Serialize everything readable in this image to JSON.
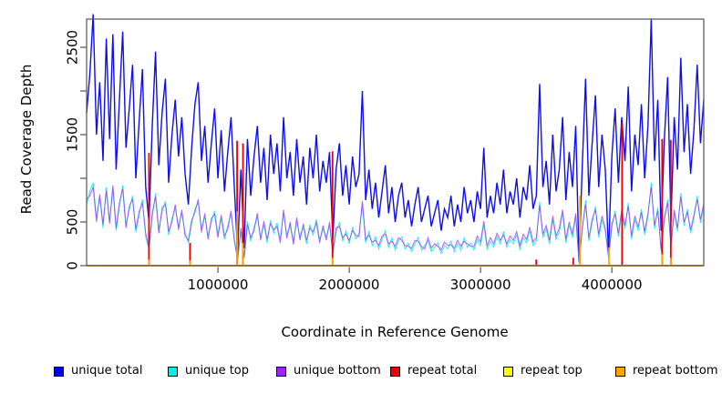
{
  "figure": {
    "background": "#ffffff",
    "axis_color": "#333333",
    "box_color": "#555555",
    "text_color": "#000000"
  },
  "chart_data": {
    "type": "line",
    "title": "",
    "xlabel": "Coordinate in Reference Genome",
    "ylabel": "Read Coverage Depth",
    "xlim": [
      0,
      4700000
    ],
    "ylim": [
      0,
      2823
    ],
    "grid": false,
    "legend_position": "bottom",
    "x_ticks": [
      1000000,
      2000000,
      3000000,
      4000000
    ],
    "x_tick_labels": [
      "1000000",
      "2000000",
      "3000000",
      "4000000"
    ],
    "y_ticks": [
      0,
      500,
      1000,
      1500,
      2000,
      2500
    ],
    "y_tick_labels": [
      "0",
      "500",
      "",
      "1500",
      "",
      "2500"
    ],
    "x_start": 0,
    "x_step": 25000,
    "series": [
      {
        "name": "unique total",
        "color": "#0000EE",
        "values": [
          1750,
          2200,
          2880,
          1500,
          2100,
          1200,
          2600,
          1450,
          2650,
          1100,
          1900,
          2680,
          1350,
          1800,
          2300,
          1000,
          1650,
          2250,
          900,
          500,
          1600,
          2450,
          1150,
          1750,
          2140,
          950,
          1500,
          1900,
          1250,
          1700,
          1050,
          700,
          1350,
          1850,
          2100,
          1200,
          1600,
          950,
          1400,
          1800,
          1000,
          1550,
          850,
          1300,
          1700,
          900,
          150,
          1100,
          200,
          1450,
          800,
          1250,
          1600,
          950,
          1350,
          750,
          1500,
          1050,
          1400,
          850,
          1700,
          1000,
          1300,
          800,
          1450,
          950,
          1250,
          700,
          1350,
          1000,
          1500,
          850,
          1200,
          950,
          1300,
          300,
          1100,
          1400,
          800,
          1150,
          700,
          1250,
          900,
          1050,
          2000,
          750,
          1100,
          650,
          950,
          550,
          850,
          1150,
          600,
          900,
          500,
          800,
          950,
          550,
          750,
          450,
          700,
          900,
          500,
          650,
          800,
          450,
          600,
          750,
          400,
          650,
          550,
          800,
          450,
          700,
          500,
          900,
          600,
          750,
          500,
          850,
          650,
          1350,
          550,
          800,
          600,
          950,
          700,
          1100,
          600,
          850,
          700,
          1000,
          550,
          900,
          750,
          1150,
          650,
          800,
          2080,
          900,
          1200,
          700,
          1500,
          850,
          1100,
          1700,
          750,
          1300,
          900,
          1600,
          60,
          1150,
          2140,
          800,
          1400,
          1950,
          900,
          1500,
          1100,
          150,
          1250,
          1800,
          950,
          1700,
          1200,
          2050,
          850,
          1500,
          1150,
          1850,
          1000,
          1600,
          2820,
          1200,
          1900,
          400,
          1450,
          2160,
          500,
          1700,
          1100,
          2380,
          1300,
          1850,
          1050,
          1550,
          2300,
          1400,
          1900
        ]
      },
      {
        "name": "unique top",
        "color": "#00EEEE",
        "values": [
          700,
          850,
          950,
          550,
          780,
          430,
          900,
          520,
          880,
          400,
          680,
          920,
          470,
          640,
          800,
          380,
          580,
          760,
          330,
          180,
          560,
          830,
          410,
          620,
          740,
          350,
          540,
          660,
          450,
          600,
          380,
          260,
          480,
          650,
          720,
          420,
          560,
          340,
          500,
          630,
          360,
          540,
          300,
          460,
          590,
          320,
          60,
          390,
          80,
          510,
          280,
          440,
          560,
          330,
          470,
          260,
          520,
          370,
          490,
          300,
          600,
          350,
          460,
          280,
          510,
          330,
          440,
          250,
          470,
          350,
          530,
          300,
          420,
          330,
          460,
          120,
          390,
          490,
          280,
          400,
          250,
          440,
          310,
          370,
          700,
          260,
          390,
          230,
          330,
          190,
          300,
          400,
          210,
          320,
          180,
          280,
          330,
          190,
          260,
          160,
          250,
          320,
          180,
          230,
          280,
          160,
          210,
          260,
          140,
          230,
          190,
          280,
          160,
          250,
          180,
          320,
          210,
          260,
          180,
          300,
          230,
          470,
          190,
          280,
          210,
          330,
          250,
          390,
          210,
          300,
          250,
          350,
          190,
          320,
          260,
          400,
          230,
          280,
          730,
          320,
          420,
          250,
          530,
          300,
          390,
          600,
          260,
          460,
          320,
          560,
          40,
          400,
          750,
          280,
          490,
          680,
          320,
          530,
          390,
          80,
          440,
          630,
          330,
          600,
          420,
          720,
          300,
          530,
          400,
          650,
          350,
          560,
          950,
          420,
          670,
          160,
          510,
          760,
          200,
          600,
          390,
          830,
          460,
          650,
          370,
          540,
          800,
          490,
          670
        ]
      },
      {
        "name": "unique bottom",
        "color": "#A020F0",
        "values": [
          760,
          800,
          900,
          500,
          820,
          470,
          860,
          480,
          920,
          430,
          720,
          880,
          430,
          680,
          760,
          420,
          620,
          720,
          370,
          210,
          600,
          790,
          370,
          660,
          700,
          390,
          500,
          700,
          410,
          640,
          340,
          290,
          520,
          610,
          760,
          380,
          600,
          300,
          540,
          590,
          320,
          580,
          340,
          420,
          630,
          280,
          80,
          430,
          100,
          470,
          320,
          400,
          600,
          290,
          510,
          300,
          480,
          410,
          450,
          260,
          640,
          310,
          500,
          240,
          550,
          290,
          480,
          290,
          430,
          390,
          490,
          260,
          460,
          290,
          500,
          150,
          430,
          450,
          320,
          360,
          290,
          400,
          350,
          330,
          740,
          300,
          350,
          270,
          290,
          230,
          340,
          360,
          250,
          280,
          220,
          320,
          290,
          230,
          220,
          200,
          290,
          280,
          220,
          190,
          320,
          200,
          250,
          220,
          180,
          270,
          230,
          240,
          200,
          290,
          220,
          280,
          250,
          220,
          220,
          340,
          270,
          510,
          230,
          320,
          250,
          370,
          290,
          350,
          250,
          340,
          290,
          390,
          230,
          360,
          300,
          440,
          270,
          320,
          690,
          360,
          460,
          290,
          570,
          340,
          430,
          640,
          300,
          500,
          360,
          600,
          30,
          440,
          700,
          320,
          530,
          640,
          360,
          570,
          430,
          100,
          480,
          590,
          370,
          640,
          460,
          680,
          340,
          570,
          440,
          610,
          390,
          600,
          900,
          460,
          630,
          190,
          550,
          720,
          240,
          640,
          430,
          790,
          500,
          610,
          410,
          580,
          760,
          530,
          710
        ]
      },
      {
        "name": "repeat total",
        "color": "#EE0000",
        "baseline": 0,
        "spikes": [
          {
            "x": 475000,
            "v": 1290
          },
          {
            "x": 787500,
            "v": 260
          },
          {
            "x": 1146000,
            "v": 1430
          },
          {
            "x": 1191000,
            "v": 1400
          },
          {
            "x": 1873000,
            "v": 1310
          },
          {
            "x": 3424000,
            "v": 70
          },
          {
            "x": 3706000,
            "v": 90
          },
          {
            "x": 4078000,
            "v": 1630
          },
          {
            "x": 4383000,
            "v": 1450
          },
          {
            "x": 4449000,
            "v": 1440
          }
        ]
      },
      {
        "name": "repeat top",
        "color": "#FFFF00",
        "baseline": 0,
        "spikes": []
      },
      {
        "name": "repeat bottom",
        "color": "#FFA500",
        "baseline": 0,
        "spikes": [
          {
            "x": 475000,
            "v": 70
          },
          {
            "x": 787500,
            "v": 60
          },
          {
            "x": 1146000,
            "v": 620
          },
          {
            "x": 1191000,
            "v": 260
          },
          {
            "x": 1873000,
            "v": 90
          },
          {
            "x": 3757000,
            "v": 800
          },
          {
            "x": 3978000,
            "v": 210
          },
          {
            "x": 4383000,
            "v": 130
          },
          {
            "x": 4449000,
            "v": 90
          }
        ]
      }
    ]
  }
}
